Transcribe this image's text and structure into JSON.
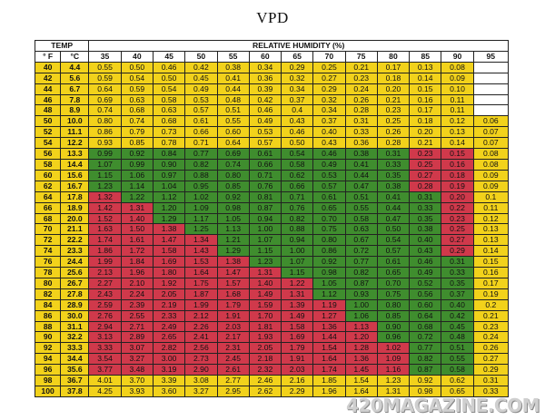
{
  "title": "VPD",
  "header": {
    "temp_label": "TEMP",
    "rh_label": "RELATIVE HUMIDITY (%)",
    "f_unit": "° F",
    "c_unit": "°C",
    "rh_values": [
      "35",
      "40",
      "45",
      "50",
      "55",
      "60",
      "65",
      "70",
      "75",
      "80",
      "85",
      "90",
      "95"
    ]
  },
  "colors": {
    "yellow": "#f2d21b",
    "green": "#3f8d2e",
    "red": "#d0394b",
    "white": "#ffffff"
  },
  "rows": [
    {
      "f": "40",
      "c": "4.4",
      "v": [
        "0.55",
        "0.50",
        "0.46",
        "0.42",
        "0.38",
        "0.34",
        "0.29",
        "0.25",
        "0.21",
        "0.17",
        "0.13",
        "0.08",
        ""
      ],
      "k": "YYYYYYYYYYYYW"
    },
    {
      "f": "42",
      "c": "5.6",
      "v": [
        "0.59",
        "0.54",
        "0.50",
        "0.45",
        "0.41",
        "0.36",
        "0.32",
        "0.27",
        "0.23",
        "0.18",
        "0.14",
        "0.09",
        ""
      ],
      "k": "YYYYYYYYYYYYW"
    },
    {
      "f": "44",
      "c": "6.7",
      "v": [
        "0.64",
        "0.59",
        "0.54",
        "0.49",
        "0.44",
        "0.39",
        "0.34",
        "0.29",
        "0.24",
        "0.20",
        "0.15",
        "0.10",
        ""
      ],
      "k": "YYYYYYYYYYYYW"
    },
    {
      "f": "46",
      "c": "7.8",
      "v": [
        "0.69",
        "0.63",
        "0.58",
        "0.53",
        "0.48",
        "0.42",
        "0.37",
        "0.32",
        "0.26",
        "0.21",
        "0.16",
        "0.11",
        ""
      ],
      "k": "YYYYYYYYYYYYW"
    },
    {
      "f": "48",
      "c": "8.9",
      "v": [
        "0.74",
        "0.68",
        "0.63",
        "0.57",
        "0.51",
        "0.46",
        "0.4",
        "0.34",
        "0.28",
        "0.23",
        "0.17",
        "0.11",
        ""
      ],
      "k": "YYYYYYYYYYYYW"
    },
    {
      "f": "50",
      "c": "10.0",
      "v": [
        "0.80",
        "0.74",
        "0.68",
        "0.61",
        "0.55",
        "0.49",
        "0.43",
        "0.37",
        "0.31",
        "0.25",
        "0.18",
        "0.12",
        "0.06"
      ],
      "k": "YYYYYYYYYYYYY"
    },
    {
      "f": "52",
      "c": "11.1",
      "v": [
        "0.86",
        "0.79",
        "0.73",
        "0.66",
        "0.60",
        "0.53",
        "0.46",
        "0.40",
        "0.33",
        "0.26",
        "0.20",
        "0.13",
        "0.07"
      ],
      "k": "YYYYYYYYYYYYY"
    },
    {
      "f": "54",
      "c": "12.2",
      "v": [
        "0.93",
        "0.85",
        "0.78",
        "0.71",
        "0.64",
        "0.57",
        "0.50",
        "0.43",
        "0.36",
        "0.28",
        "0.21",
        "0.14",
        "0.07"
      ],
      "k": "YYYYYYYYYYYYY"
    },
    {
      "f": "56",
      "c": "13.3",
      "v": [
        "0.99",
        "0.92",
        "0.84",
        "0.77",
        "0.69",
        "0.61",
        "0.54",
        "0.46",
        "0.38",
        "0.31",
        "0.23",
        "0.15",
        "0.08"
      ],
      "k": "GGGGGGGGGGRRY"
    },
    {
      "f": "58",
      "c": "14.4",
      "v": [
        "1.07",
        "0.99",
        "0.90",
        "0.82",
        "0.74",
        "0.66",
        "0.58",
        "0.49",
        "0.41",
        "0.33",
        "0.25",
        "0.16",
        "0.08"
      ],
      "k": "GGGGGGGGGGRRY"
    },
    {
      "f": "60",
      "c": "15.6",
      "v": [
        "1.15",
        "1.06",
        "0.97",
        "0.88",
        "0.80",
        "0.71",
        "0.62",
        "0.53",
        "0.44",
        "0.35",
        "0.27",
        "0.18",
        "0.09"
      ],
      "k": "GGGGGGGGGGRRY"
    },
    {
      "f": "62",
      "c": "16.7",
      "v": [
        "1.23",
        "1.14",
        "1.04",
        "0.95",
        "0.85",
        "0.76",
        "0.66",
        "0.57",
        "0.47",
        "0.38",
        "0.28",
        "0.19",
        "0.09"
      ],
      "k": "GGGGGGGGGGRRY"
    },
    {
      "f": "64",
      "c": "17.8",
      "v": [
        "1.32",
        "1.22",
        "1.12",
        "1.02",
        "0.92",
        "0.81",
        "0.71",
        "0.61",
        "0.51",
        "0.41",
        "0.31",
        "0.20",
        "0.1"
      ],
      "k": "RGGGGGGGGGGRY"
    },
    {
      "f": "66",
      "c": "18.9",
      "v": [
        "1.42",
        "1.31",
        "1.20",
        "1.09",
        "0.98",
        "0.87",
        "0.76",
        "0.65",
        "0.55",
        "0.44",
        "0.33",
        "0.22",
        "0.11"
      ],
      "k": "RRGGGGGGGGGRY"
    },
    {
      "f": "68",
      "c": "20.0",
      "v": [
        "1.52",
        "1.40",
        "1.29",
        "1.17",
        "1.05",
        "0.94",
        "0.82",
        "0.70",
        "0.58",
        "0.47",
        "0.35",
        "0.23",
        "0.12"
      ],
      "k": "RRGGGGGGGGGRY"
    },
    {
      "f": "70",
      "c": "21.1",
      "v": [
        "1.63",
        "1.50",
        "1.38",
        "1.25",
        "1.13",
        "1.00",
        "0.88",
        "0.75",
        "0.63",
        "0.50",
        "0.38",
        "0.25",
        "0.13"
      ],
      "k": "RRRGGGGGGGGRY"
    },
    {
      "f": "72",
      "c": "22.2",
      "v": [
        "1.74",
        "1.61",
        "1.47",
        "1.34",
        "1.21",
        "1.07",
        "0.94",
        "0.80",
        "0.67",
        "0.54",
        "0.40",
        "0.27",
        "0.13"
      ],
      "k": "RRRRGGGGGGGRY"
    },
    {
      "f": "74",
      "c": "23.3",
      "v": [
        "1.86",
        "1.72",
        "1.58",
        "1.43",
        "1.29",
        "1.15",
        "1.00",
        "0.86",
        "0.72",
        "0.57",
        "0.43",
        "0.29",
        "0.14"
      ],
      "k": "RRRRGGGGGGGRY"
    },
    {
      "f": "76",
      "c": "24.4",
      "v": [
        "1.99",
        "1.84",
        "1.69",
        "1.53",
        "1.38",
        "1.23",
        "1.07",
        "0.92",
        "0.77",
        "0.61",
        "0.46",
        "0.31",
        "0.15"
      ],
      "k": "RRRRRGGGGGGGY"
    },
    {
      "f": "78",
      "c": "25.6",
      "v": [
        "2.13",
        "1.96",
        "1.80",
        "1.64",
        "1.47",
        "1.31",
        "1.15",
        "0.98",
        "0.82",
        "0.65",
        "0.49",
        "0.33",
        "0.16"
      ],
      "k": "RRRRRRGGGGGGY"
    },
    {
      "f": "80",
      "c": "26.7",
      "v": [
        "2.27",
        "2.10",
        "1.92",
        "1.75",
        "1.57",
        "1.40",
        "1.22",
        "1.05",
        "0.87",
        "0.70",
        "0.52",
        "0.35",
        "0.17"
      ],
      "k": "RRRRRRRGGGGGY"
    },
    {
      "f": "82",
      "c": "27.8",
      "v": [
        "2.43",
        "2.24",
        "2.05",
        "1.87",
        "1.68",
        "1.49",
        "1.31",
        "1.12",
        "0.93",
        "0.75",
        "0.56",
        "0.37",
        "0.19"
      ],
      "k": "RRRRRRRGGGGGY"
    },
    {
      "f": "84",
      "c": "28.9",
      "v": [
        "2.59",
        "2.39",
        "2.19",
        "1.99",
        "1.79",
        "1.59",
        "1.39",
        "1.19",
        "1.00",
        "0.80",
        "0.60",
        "0.40",
        "0.2"
      ],
      "k": "RRRRRRRRGGGGY"
    },
    {
      "f": "86",
      "c": "30.0",
      "v": [
        "2.76",
        "2.55",
        "2.33",
        "2.12",
        "1.91",
        "1.70",
        "1.49",
        "1.27",
        "1.06",
        "0.85",
        "0.64",
        "0.42",
        "0.21"
      ],
      "k": "RRRRRRRRGGGGY"
    },
    {
      "f": "88",
      "c": "31.1",
      "v": [
        "2.94",
        "2.71",
        "2.49",
        "2.26",
        "2.03",
        "1.81",
        "1.58",
        "1.36",
        "1.13",
        "0.90",
        "0.68",
        "0.45",
        "0.23"
      ],
      "k": "RRRRRRRRRGGGY"
    },
    {
      "f": "90",
      "c": "32.2",
      "v": [
        "3.13",
        "2.89",
        "2.65",
        "2.41",
        "2.17",
        "1.93",
        "1.69",
        "1.44",
        "1.20",
        "0.96",
        "0.72",
        "0.48",
        "0.24"
      ],
      "k": "RRRRRRRRRGGGY"
    },
    {
      "f": "92",
      "c": "33.3",
      "v": [
        "3.33",
        "3.07",
        "2.82",
        "2.56",
        "2.31",
        "2.05",
        "1.79",
        "1.54",
        "1.28",
        "1.02",
        "0.77",
        "0.51",
        "0.26"
      ],
      "k": "RRRRRRRRRRGGY"
    },
    {
      "f": "94",
      "c": "34.4",
      "v": [
        "3.54",
        "3.27",
        "3.00",
        "2.73",
        "2.45",
        "2.18",
        "1.91",
        "1.64",
        "1.36",
        "1.09",
        "0.82",
        "0.55",
        "0.27"
      ],
      "k": "RRRRRRRRRRGGY"
    },
    {
      "f": "96",
      "c": "35.6",
      "v": [
        "3.77",
        "3.48",
        "3.19",
        "2.90",
        "2.61",
        "2.32",
        "2.03",
        "1.74",
        "1.45",
        "1.16",
        "0.87",
        "0.58",
        "0.29"
      ],
      "k": "RRRRRRRRRRGGY"
    },
    {
      "f": "98",
      "c": "36.7",
      "v": [
        "4.01",
        "3.70",
        "3.39",
        "3.08",
        "2.77",
        "2.46",
        "2.16",
        "1.85",
        "1.54",
        "1.23",
        "0.92",
        "0.62",
        "0.31"
      ],
      "k": "YYYYYYYYYYYYY"
    },
    {
      "f": "100",
      "c": "37.8",
      "v": [
        "4.25",
        "3.93",
        "3.60",
        "3.27",
        "2.95",
        "2.62",
        "2.29",
        "1.96",
        "1.64",
        "1.31",
        "0.98",
        "0.65",
        "0.33"
      ],
      "k": "YYYYYYYYYYYYY"
    }
  ],
  "watermark": "420MAGAZINE.COM"
}
